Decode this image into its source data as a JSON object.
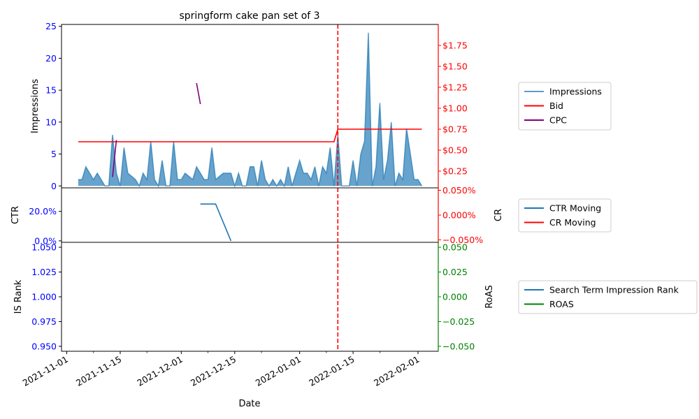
{
  "chart_data": {
    "type": "multi-panel-timeseries",
    "title": "springform cake pan set of 3",
    "xlabel": "Date",
    "x_ticks": [
      "2021-11-01",
      "2021-11-15",
      "2021-12-01",
      "2021-12-15",
      "2022-01-01",
      "2022-01-15",
      "2022-02-01"
    ],
    "marker_date": "2022-01-11",
    "panels": [
      {
        "id": "top",
        "ylabel_left": "Impressions",
        "ylim_left": [
          -0.3,
          25.3
        ],
        "yticks_left": [
          {
            "v": 0,
            "label": "0"
          },
          {
            "v": 5,
            "label": "5"
          },
          {
            "v": 10,
            "label": "10"
          },
          {
            "v": 15,
            "label": "15"
          },
          {
            "v": 20,
            "label": "20"
          },
          {
            "v": 25,
            "label": "25"
          }
        ],
        "ylim_right": [
          0.05,
          2.0
        ],
        "yticks_right": [
          {
            "v": 0.25,
            "label": "$0.25"
          },
          {
            "v": 0.5,
            "label": "$0.50"
          },
          {
            "v": 0.75,
            "label": "$0.75"
          },
          {
            "v": 1.0,
            "label": "$1.00"
          },
          {
            "v": 1.25,
            "label": "$1.25"
          },
          {
            "v": 1.5,
            "label": "$1.50"
          },
          {
            "v": 1.75,
            "label": "$1.75"
          }
        ],
        "legend": [
          "Impressions",
          "Bid",
          "CPC"
        ]
      },
      {
        "id": "mid",
        "ylabel_left": "CTR",
        "ylabel_right": "CR",
        "ylim_left": [
          -0.01,
          0.36
        ],
        "yticks_left": [
          {
            "v": 0,
            "label": "0.0%"
          },
          {
            "v": 0.2,
            "label": "20.0%"
          }
        ],
        "ylim_right": [
          -0.055,
          0.055
        ],
        "yticks_right": [
          {
            "v": -0.05,
            "label": "−0.050%"
          },
          {
            "v": 0,
            "label": "0.000%"
          },
          {
            "v": 0.05,
            "label": "0.050%"
          }
        ],
        "legend": [
          "CTR Moving",
          "CR Moving"
        ]
      },
      {
        "id": "bot",
        "ylabel_left": "IS Rank",
        "ylabel_right": "RoAS",
        "ylim_left": [
          0.945,
          1.055
        ],
        "yticks_left": [
          {
            "v": 0.95,
            "label": "0.950"
          },
          {
            "v": 0.975,
            "label": "0.975"
          },
          {
            "v": 1.0,
            "label": "1.000"
          },
          {
            "v": 1.025,
            "label": "1.025"
          },
          {
            "v": 1.05,
            "label": "1.050"
          }
        ],
        "ylim_right": [
          -0.055,
          0.055
        ],
        "yticks_right": [
          {
            "v": -0.05,
            "label": "−0.050"
          },
          {
            "v": -0.025,
            "label": "−0.025"
          },
          {
            "v": 0,
            "label": "0.000"
          },
          {
            "v": 0.025,
            "label": "0.025"
          },
          {
            "v": 0.05,
            "label": "0.050"
          }
        ],
        "legend": [
          "Search Term Impression Rank",
          "ROAS"
        ]
      }
    ],
    "series": [
      {
        "name": "Impressions",
        "panel": "top",
        "axis": "left",
        "kind": "area",
        "color": "#1f77b4",
        "points": [
          [
            "2021-11-04",
            1
          ],
          [
            "2021-11-05",
            1
          ],
          [
            "2021-11-06",
            3
          ],
          [
            "2021-11-07",
            2
          ],
          [
            "2021-11-08",
            1
          ],
          [
            "2021-11-09",
            2
          ],
          [
            "2021-11-10",
            1
          ],
          [
            "2021-11-11",
            0
          ],
          [
            "2021-11-12",
            0
          ],
          [
            "2021-11-13",
            8
          ],
          [
            "2021-11-14",
            2
          ],
          [
            "2021-11-15",
            0
          ],
          [
            "2021-11-16",
            6
          ],
          [
            "2021-11-17",
            2
          ],
          [
            "2021-11-18",
            1.5
          ],
          [
            "2021-11-19",
            1
          ],
          [
            "2021-11-20",
            0
          ],
          [
            "2021-11-21",
            2
          ],
          [
            "2021-11-22",
            1
          ],
          [
            "2021-11-23",
            7
          ],
          [
            "2021-11-24",
            1
          ],
          [
            "2021-11-25",
            0
          ],
          [
            "2021-11-26",
            4
          ],
          [
            "2021-11-27",
            0
          ],
          [
            "2021-11-28",
            0
          ],
          [
            "2021-11-29",
            7
          ],
          [
            "2021-11-30",
            1
          ],
          [
            "2021-12-01",
            1
          ],
          [
            "2021-12-02",
            2
          ],
          [
            "2021-12-03",
            1.5
          ],
          [
            "2021-12-04",
            1
          ],
          [
            "2021-12-05",
            3
          ],
          [
            "2021-12-06",
            2
          ],
          [
            "2021-12-07",
            1
          ],
          [
            "2021-12-08",
            1
          ],
          [
            "2021-12-09",
            6
          ],
          [
            "2021-12-10",
            1
          ],
          [
            "2021-12-11",
            1.5
          ],
          [
            "2021-12-12",
            2
          ],
          [
            "2021-12-13",
            2
          ],
          [
            "2021-12-14",
            2
          ],
          [
            "2021-12-15",
            0
          ],
          [
            "2021-12-16",
            2
          ],
          [
            "2021-12-17",
            0
          ],
          [
            "2021-12-18",
            0
          ],
          [
            "2021-12-19",
            3
          ],
          [
            "2021-12-20",
            3
          ],
          [
            "2021-12-21",
            0
          ],
          [
            "2021-12-22",
            4
          ],
          [
            "2021-12-23",
            1
          ],
          [
            "2021-12-24",
            0
          ],
          [
            "2021-12-25",
            1
          ],
          [
            "2021-12-26",
            0
          ],
          [
            "2021-12-27",
            1
          ],
          [
            "2021-12-28",
            0
          ],
          [
            "2021-12-29",
            3
          ],
          [
            "2021-12-30",
            0
          ],
          [
            "2021-12-31",
            2
          ],
          [
            "2022-01-01",
            4
          ],
          [
            "2022-01-02",
            2
          ],
          [
            "2022-01-03",
            2
          ],
          [
            "2022-01-04",
            1
          ],
          [
            "2022-01-05",
            3
          ],
          [
            "2022-01-06",
            0
          ],
          [
            "2022-01-07",
            3
          ],
          [
            "2022-01-08",
            2
          ],
          [
            "2022-01-09",
            6
          ],
          [
            "2022-01-10",
            0
          ],
          [
            "2022-01-11",
            8
          ],
          [
            "2022-01-12",
            0
          ],
          [
            "2022-01-13",
            0
          ],
          [
            "2022-01-14",
            0
          ],
          [
            "2022-01-15",
            4
          ],
          [
            "2022-01-16",
            0
          ],
          [
            "2022-01-17",
            5
          ],
          [
            "2022-01-18",
            7
          ],
          [
            "2022-01-19",
            24
          ],
          [
            "2022-01-20",
            0
          ],
          [
            "2022-01-21",
            3
          ],
          [
            "2022-01-22",
            13
          ],
          [
            "2022-01-23",
            1
          ],
          [
            "2022-01-24",
            4
          ],
          [
            "2022-01-25",
            10
          ],
          [
            "2022-01-26",
            0
          ],
          [
            "2022-01-27",
            2
          ],
          [
            "2022-01-28",
            1
          ],
          [
            "2022-01-29",
            9
          ],
          [
            "2022-01-30",
            5
          ],
          [
            "2022-01-31",
            1
          ],
          [
            "2022-02-01",
            1
          ],
          [
            "2022-02-02",
            0
          ]
        ]
      },
      {
        "name": "Bid",
        "panel": "top",
        "axis": "right",
        "kind": "line",
        "color": "#ff0000",
        "points": [
          [
            "2021-11-04",
            0.6
          ],
          [
            "2022-01-10",
            0.6
          ],
          [
            "2022-01-11",
            0.75
          ],
          [
            "2022-02-02",
            0.75
          ]
        ]
      },
      {
        "name": "CPC",
        "panel": "top",
        "axis": "right",
        "kind": "line",
        "color": "#800080",
        "segments": [
          [
            [
              "2021-11-13",
              0.18
            ],
            [
              "2021-11-14",
              0.62
            ]
          ],
          [
            [
              "2021-12-05",
              1.3
            ],
            [
              "2021-12-06",
              1.05
            ]
          ]
        ]
      },
      {
        "name": "CTR Moving",
        "panel": "mid",
        "axis": "left",
        "kind": "line",
        "color": "#1f77b4",
        "points": [
          [
            "2021-12-06",
            0.25
          ],
          [
            "2021-12-10",
            0.25
          ],
          [
            "2021-12-14",
            0.0
          ]
        ]
      },
      {
        "name": "CR Moving",
        "panel": "mid",
        "axis": "right",
        "kind": "line",
        "color": "#ff0000",
        "points": []
      },
      {
        "name": "Search Term Impression Rank",
        "panel": "bot",
        "axis": "left",
        "kind": "line",
        "color": "#1f77b4",
        "points": []
      },
      {
        "name": "ROAS",
        "panel": "bot",
        "axis": "right",
        "kind": "line",
        "color": "#008000",
        "points": []
      }
    ],
    "legend_colors": {
      "Impressions": "#5b9bd0",
      "Bid": "#ff0000",
      "CPC": "#800080",
      "CTR Moving": "#1f77b4",
      "CR Moving": "#ff0000",
      "Search Term Impression Rank": "#1f77b4",
      "ROAS": "#008000"
    },
    "axis_colors": {
      "left": "#0000ff",
      "right_top": "#ff0000",
      "right_mid": "#ff0000",
      "right_bot": "#008000"
    }
  }
}
